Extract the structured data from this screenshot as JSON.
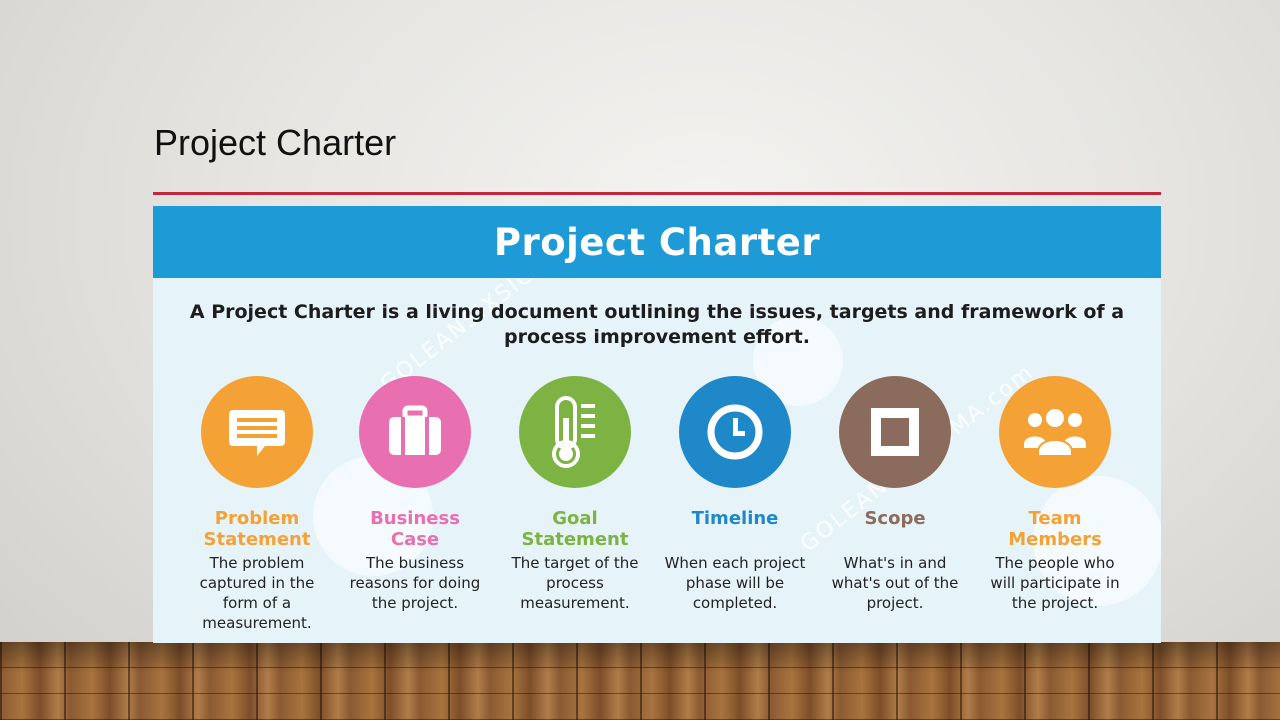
{
  "slide": {
    "title": "Project Charter"
  },
  "infographic": {
    "banner_title": "Project Charter",
    "intro": "A Project Charter is a living document outlining the issues, targets and framework of a process improvement effort.",
    "watermark": "GOLEANSIXSIGMA.com",
    "items": [
      {
        "title": "Problem Statement",
        "description": "The problem captured in the form of a measurement.",
        "color": "#f4a236",
        "icon": "speech-bubble-icon"
      },
      {
        "title": "Business Case",
        "description": "The business reasons for doing the project.",
        "color": "#e86fb0",
        "icon": "briefcase-icon"
      },
      {
        "title": "Goal Statement",
        "description": "The target of the process measurement.",
        "color": "#7cb342",
        "icon": "thermometer-icon"
      },
      {
        "title": "Timeline",
        "description": "When each project phase will be completed.",
        "color": "#1e88c9",
        "icon": "clock-icon"
      },
      {
        "title": "Scope",
        "description": "What's in and what's out of the project.",
        "color": "#8b6b5c",
        "icon": "square-frame-icon"
      },
      {
        "title": "Team Members",
        "description": "The people who will participate in the project.",
        "color": "#f4a236",
        "icon": "people-group-icon"
      }
    ]
  },
  "colors": {
    "accent_rule": "#c1273d",
    "banner": "#1e9ad6",
    "panel_background": "#e6f4fa"
  }
}
